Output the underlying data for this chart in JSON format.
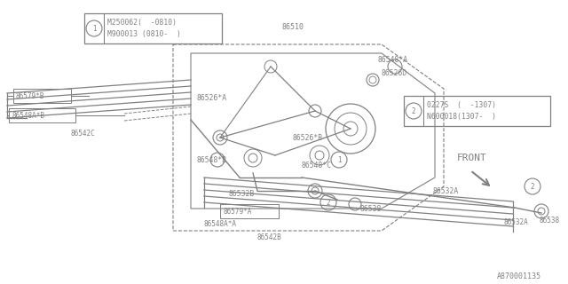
{
  "bg_color": "#ffffff",
  "line_color": "#808080",
  "text_color": "#808080",
  "footer": "A870001135",
  "box1_line1": "M250062(  -0810)",
  "box1_line2": "M900013 (0810-  )",
  "box2_line1": "0227S  (  -1307)",
  "box2_line2": "N600018(1307-  )",
  "front_label": "FRONT",
  "upper_blade_lines": [
    [
      [
        0.03,
        0.32
      ],
      [
        0.62,
        0.49
      ]
    ],
    [
      [
        0.03,
        0.345
      ],
      [
        0.62,
        0.515
      ]
    ],
    [
      [
        0.03,
        0.37
      ],
      [
        0.62,
        0.54
      ]
    ],
    [
      [
        0.03,
        0.395
      ],
      [
        0.62,
        0.565
      ]
    ],
    [
      [
        0.03,
        0.42
      ],
      [
        0.62,
        0.59
      ]
    ]
  ],
  "lower_blade_lines": [
    [
      [
        0.27,
        0.18
      ],
      [
        0.87,
        0.305
      ]
    ],
    [
      [
        0.27,
        0.205
      ],
      [
        0.87,
        0.33
      ]
    ],
    [
      [
        0.27,
        0.23
      ],
      [
        0.87,
        0.355
      ]
    ],
    [
      [
        0.27,
        0.255
      ],
      [
        0.87,
        0.38
      ]
    ],
    [
      [
        0.27,
        0.28
      ],
      [
        0.87,
        0.405
      ]
    ]
  ]
}
